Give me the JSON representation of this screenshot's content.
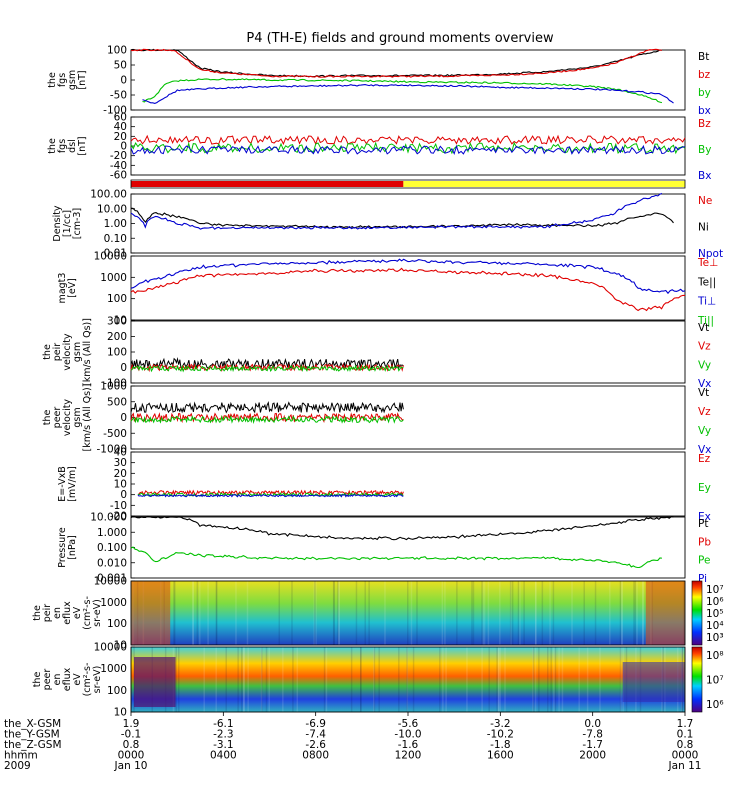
{
  "title": "P4 (TH-E) fields and ground moments overview",
  "panels": [
    {
      "id": "fgs-gsm",
      "ylabel": [
        "the",
        "fgs",
        "gsm",
        "[nT]"
      ],
      "ticks": [
        "100",
        "50",
        "0",
        "-50",
        "-100"
      ],
      "legend": [
        {
          "t": "Bt",
          "c": "#000000"
        },
        {
          "t": "bz",
          "c": "#e00000"
        },
        {
          "t": "by",
          "c": "#00c000"
        },
        {
          "t": "bx",
          "c": "#0000d0"
        }
      ]
    },
    {
      "id": "fgs-dsl",
      "ylabel": [
        "the",
        "fgs",
        "dsl",
        "[nT]"
      ],
      "ticks": [
        "60",
        "40",
        "20",
        "0",
        "-20",
        "-40",
        "-60"
      ],
      "legend": [
        {
          "t": "Bz",
          "c": "#e00000"
        },
        {
          "t": "By",
          "c": "#00c000"
        },
        {
          "t": "Bx",
          "c": "#0000d0"
        }
      ]
    },
    {
      "id": "density",
      "ylabel": [
        "Density",
        "[1/cc]",
        "[cm-3]"
      ],
      "ticks": [
        "100.00",
        "10.00",
        "1.00",
        "0.10",
        "0.01"
      ],
      "legend": [
        {
          "t": "Ne",
          "c": "#e00000"
        },
        {
          "t": "Ni",
          "c": "#000000"
        },
        {
          "t": "Npot",
          "c": "#0000d0"
        }
      ]
    },
    {
      "id": "temperature",
      "ylabel": [
        "magt3",
        "[eV]"
      ],
      "ticks": [
        "10000",
        "1000",
        "100",
        "10"
      ],
      "legend": [
        {
          "t": "Te⊥",
          "c": "#e00000"
        },
        {
          "t": "Te||",
          "c": "#000000"
        },
        {
          "t": "Ti⊥",
          "c": "#0000d0"
        },
        {
          "t": "Ti||",
          "c": "#00c000"
        }
      ]
    },
    {
      "id": "peir-velocity",
      "ylabel": [
        "the",
        "peir",
        "velocity",
        "gsm",
        "[km/s (All Qs)]"
      ],
      "ticks": [
        "300",
        "200",
        "100",
        "0",
        "-100"
      ],
      "legend": [
        {
          "t": "Vt",
          "c": "#000000"
        },
        {
          "t": "Vz",
          "c": "#e00000"
        },
        {
          "t": "Vy",
          "c": "#00c000"
        },
        {
          "t": "Vx",
          "c": "#0000d0"
        }
      ]
    },
    {
      "id": "peer-velocity",
      "ylabel": [
        "the",
        "peer",
        "velocity",
        "gsm",
        "[km/s (All Qs)]"
      ],
      "ticks": [
        "1000",
        "500",
        "0",
        "-500",
        "-1000"
      ],
      "legend": [
        {
          "t": "Vt",
          "c": "#000000"
        },
        {
          "t": "Vz",
          "c": "#e00000"
        },
        {
          "t": "Vy",
          "c": "#00c000"
        },
        {
          "t": "Vx",
          "c": "#0000d0"
        }
      ]
    },
    {
      "id": "efield",
      "ylabel": [
        "E=-VxB",
        "[mV/m]"
      ],
      "ticks": [
        "40",
        "30",
        "20",
        "10",
        "0",
        "-10",
        "-20"
      ],
      "legend": [
        {
          "t": "Ez",
          "c": "#e00000"
        },
        {
          "t": "Ey",
          "c": "#00c000"
        },
        {
          "t": "Ex",
          "c": "#0000d0"
        }
      ]
    },
    {
      "id": "pressure",
      "ylabel": [
        "Pressure",
        "[nPa]"
      ],
      "ticks": [
        "10.000",
        "1.000",
        "0.100",
        "0.010",
        "0.001"
      ],
      "legend": [
        {
          "t": "Pt",
          "c": "#000000"
        },
        {
          "t": "Pb",
          "c": "#e00000"
        },
        {
          "t": "Pe",
          "c": "#00c000"
        },
        {
          "t": "Pi",
          "c": "#0000d0"
        }
      ]
    },
    {
      "id": "peir-spec",
      "ylabel": [
        "the",
        "peir",
        "en",
        "eflux",
        "eV",
        "(cm²-s-",
        "sr-eV)"
      ],
      "ticks": [
        "10000",
        "1000",
        "100",
        "10"
      ],
      "cbar": [
        "10⁷",
        "10⁶",
        "10⁵",
        "10⁴",
        "10³"
      ]
    },
    {
      "id": "peer-spec",
      "ylabel": [
        "the",
        "peer",
        "en",
        "eflux",
        "eV",
        "(cm²-s-",
        "sr-eV)"
      ],
      "ticks": [
        "10000",
        "1000",
        "100",
        "10"
      ],
      "cbar": [
        "10⁸",
        "10⁷",
        "10⁶"
      ]
    }
  ],
  "bottom_axis": {
    "row_labels": [
      "the_X-GSM",
      "the_Y-GSM",
      "the_Z-GSM",
      "hhmm",
      "2009"
    ],
    "columns": [
      [
        "1.9",
        "-0.1",
        "0.8",
        "0000",
        "Jan 10"
      ],
      [
        "-6.1",
        "-2.3",
        "-3.1",
        "0400",
        ""
      ],
      [
        "-6.9",
        "-7.4",
        "-2.6",
        "0800",
        ""
      ],
      [
        "-5.6",
        "-10.0",
        "-1.6",
        "1200",
        ""
      ],
      [
        "-3.2",
        "-10.2",
        "-1.8",
        "1600",
        ""
      ],
      [
        "0.0",
        "-7.8",
        "-1.7",
        "2000",
        ""
      ],
      [
        "1.7",
        "0.1",
        "0.8",
        "0000",
        "Jan 11"
      ]
    ]
  },
  "colors": {
    "red": "#e00000",
    "green": "#00c000",
    "blue": "#0000d0",
    "black": "#000000",
    "yellow": "#ffff33"
  },
  "chart_data": {
    "type": "line",
    "title": "P4 (TH-E) fields and ground moments overview",
    "x_axis": {
      "label": "hhmm",
      "ticks": [
        "0000",
        "0400",
        "0800",
        "1200",
        "1600",
        "2000",
        "0000"
      ],
      "range_hours": [
        0,
        24
      ]
    },
    "series": [
      {
        "panel": "fgs-gsm",
        "name": "Bt",
        "x_hours": [
          0,
          1,
          2,
          3,
          4,
          6,
          8,
          10,
          12,
          14,
          16,
          18,
          20,
          21,
          22,
          23
        ],
        "values": [
          150,
          150,
          110,
          40,
          25,
          12,
          10,
          12,
          12,
          13,
          18,
          27,
          45,
          65,
          90,
          110
        ]
      },
      {
        "panel": "fgs-gsm",
        "name": "bz",
        "x_hours": [
          0,
          1,
          2,
          3,
          4,
          6,
          8,
          10,
          12,
          14,
          16,
          18,
          20,
          21,
          22,
          23
        ],
        "values": [
          150,
          150,
          100,
          35,
          22,
          10,
          8,
          9,
          9,
          10,
          14,
          22,
          40,
          60,
          95,
          130
        ]
      },
      {
        "panel": "fgs-gsm",
        "name": "by",
        "x_hours": [
          0.5,
          1,
          1.5,
          2,
          3,
          4,
          6,
          8,
          10,
          12,
          14,
          16,
          18,
          20,
          21,
          22,
          23
        ],
        "values": [
          -90,
          -70,
          -20,
          -8,
          -3,
          -2,
          -5,
          -6,
          -8,
          -12,
          -14,
          -16,
          -20,
          -30,
          -40,
          -60,
          -90
        ]
      },
      {
        "panel": "fgs-gsm",
        "name": "bx",
        "x_hours": [
          0.5,
          1,
          1.5,
          2,
          3,
          4,
          6,
          8,
          10,
          12,
          14,
          16,
          18,
          20,
          21,
          22,
          23,
          23.5
        ],
        "values": [
          -80,
          -95,
          -70,
          -45,
          -40,
          -35,
          -30,
          -28,
          -25,
          -25,
          -28,
          -33,
          -36,
          -40,
          -45,
          -50,
          -60,
          -95
        ]
      },
      {
        "panel": "density",
        "name": "Ni",
        "x_hours": [
          0,
          0.6,
          1,
          2,
          3,
          4,
          6,
          8,
          10,
          12,
          14,
          16,
          18,
          20,
          21,
          22,
          22.8,
          23.5
        ],
        "values": [
          10,
          1,
          5,
          3,
          1,
          0.8,
          0.7,
          0.6,
          0.6,
          0.6,
          0.7,
          0.8,
          0.8,
          0.7,
          1.0,
          3,
          5,
          1
        ]
      },
      {
        "panel": "density",
        "name": "Npot",
        "x_hours": [
          0,
          0.6,
          1,
          2,
          3,
          6,
          10,
          14,
          18,
          20,
          21,
          22,
          23
        ],
        "values": [
          5,
          0.5,
          3,
          1,
          0.5,
          0.5,
          0.5,
          0.6,
          0.6,
          1.5,
          5,
          30,
          100
        ]
      },
      {
        "panel": "temperature",
        "name": "Ti⊥",
        "x_hours": [
          0,
          1,
          2,
          3,
          6,
          8,
          10,
          12,
          14,
          16,
          18,
          20,
          21,
          22,
          23,
          24
        ],
        "values": [
          300,
          800,
          1500,
          3000,
          4500,
          5000,
          5500,
          6000,
          5000,
          4500,
          4000,
          3000,
          1500,
          300,
          200,
          250
        ]
      },
      {
        "panel": "temperature",
        "name": "Te⊥",
        "x_hours": [
          0,
          1,
          2,
          3,
          6,
          8,
          10,
          12,
          14,
          16,
          18,
          20,
          21,
          22,
          23,
          24
        ],
        "values": [
          200,
          300,
          600,
          1200,
          1500,
          2000,
          2000,
          2200,
          1800,
          1500,
          1200,
          500,
          80,
          30,
          40,
          150
        ]
      },
      {
        "panel": "pressure",
        "name": "Pt",
        "x_hours": [
          0,
          2,
          3,
          6,
          8,
          10,
          12,
          14,
          16,
          18,
          20,
          21,
          22,
          23.5
        ],
        "values": [
          10,
          10,
          3,
          0.8,
          0.5,
          0.4,
          0.4,
          0.5,
          0.7,
          1.2,
          2.5,
          4,
          7,
          10
        ]
      },
      {
        "panel": "pressure",
        "name": "Pe",
        "x_hours": [
          0,
          1,
          1.5,
          2,
          3,
          6,
          10,
          14,
          18,
          20,
          21,
          22,
          23
        ],
        "values": [
          0.1,
          0.01,
          0.02,
          0.05,
          0.03,
          0.02,
          0.02,
          0.02,
          0.02,
          0.015,
          0.01,
          0.005,
          0.02
        ]
      }
    ]
  }
}
